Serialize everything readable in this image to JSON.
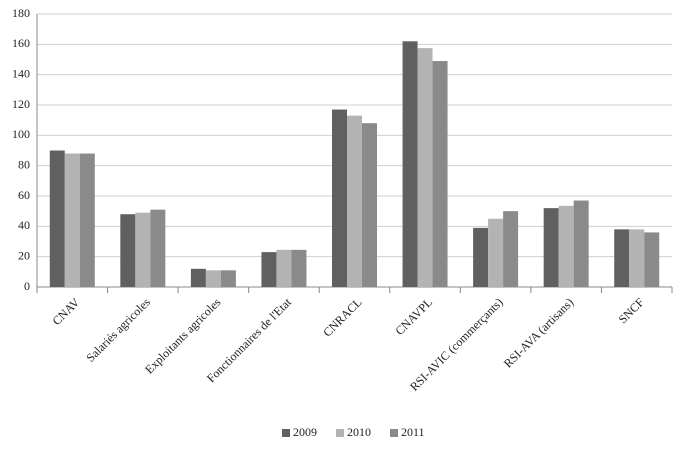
{
  "chart_data": {
    "type": "bar",
    "categories": [
      "CNAV",
      "Salariés agricoles",
      "Exploitants agricoles",
      "Fonctionnaires de l'Etat",
      "CNRACL",
      "CNAVPL",
      "RSI-AVIC (commerçants)",
      "RSI-AVA (artisans)",
      "SNCF"
    ],
    "series": [
      {
        "name": "2009",
        "color": "#606060",
        "values": [
          90,
          48,
          12,
          23,
          117,
          162,
          39,
          52,
          38
        ]
      },
      {
        "name": "2010",
        "color": "#b3b3b3",
        "values": [
          88,
          49,
          11,
          24.5,
          113,
          157.5,
          45,
          53.5,
          38
        ]
      },
      {
        "name": "2011",
        "color": "#8a8a8a",
        "values": [
          88,
          51,
          11,
          24.5,
          108,
          149,
          50,
          57,
          36
        ]
      }
    ],
    "ylim": [
      0,
      180
    ],
    "yticks": [
      0,
      20,
      40,
      60,
      80,
      100,
      120,
      140,
      160,
      180
    ],
    "grid": true,
    "legend": "bottom"
  }
}
